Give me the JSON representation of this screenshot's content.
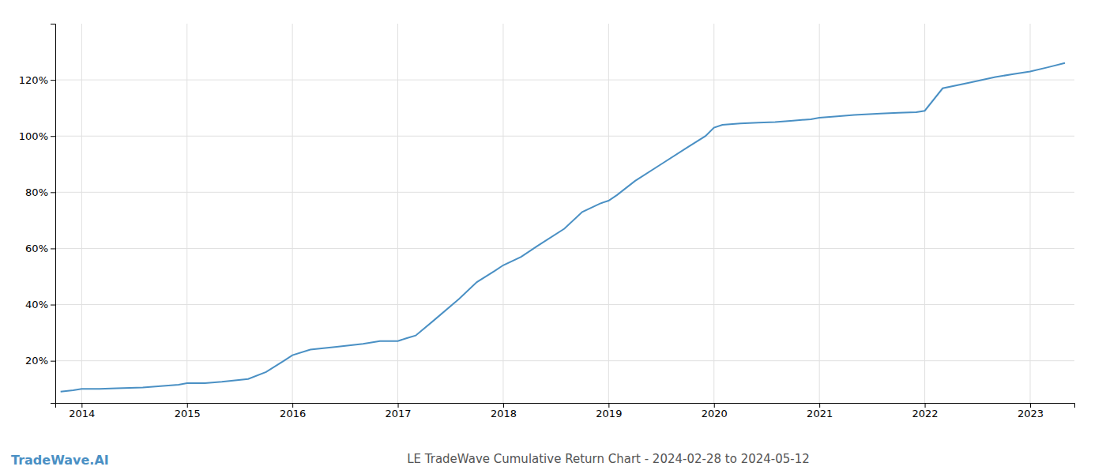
{
  "chart_data": {
    "type": "line",
    "title": "LE TradeWave Cumulative Return Chart - 2024-02-28 to 2024-05-12",
    "annotations": [
      "TradeWave.AI"
    ],
    "color": "#4a90c4",
    "grid": true,
    "x": [
      2013.8,
      2013.92,
      2014.0,
      2014.17,
      2014.33,
      2014.58,
      2014.75,
      2014.92,
      2015.0,
      2015.17,
      2015.33,
      2015.58,
      2015.75,
      2015.92,
      2016.0,
      2016.17,
      2016.42,
      2016.67,
      2016.83,
      2017.0,
      2017.08,
      2017.17,
      2017.33,
      2017.58,
      2017.75,
      2017.92,
      2018.0,
      2018.17,
      2018.33,
      2018.58,
      2018.75,
      2018.92,
      2019.0,
      2019.08,
      2019.25,
      2019.5,
      2019.75,
      2019.92,
      2020.0,
      2020.08,
      2020.25,
      2020.42,
      2020.58,
      2020.75,
      2020.92,
      2021.0,
      2021.17,
      2021.33,
      2021.58,
      2021.75,
      2021.92,
      2022.0,
      2022.17,
      2022.42,
      2022.67,
      2022.83,
      2023.0,
      2023.17,
      2023.33
    ],
    "values": [
      9,
      9.5,
      10,
      10,
      10.2,
      10.5,
      11,
      11.5,
      12,
      12,
      12.5,
      13.5,
      16,
      20,
      22,
      24,
      25,
      26,
      27,
      27,
      28,
      29,
      34,
      42,
      48,
      52,
      54,
      57,
      61,
      67,
      73,
      76,
      77,
      79,
      84,
      90,
      96,
      100,
      103,
      104,
      104.5,
      104.8,
      105,
      105.5,
      106,
      106.5,
      107,
      107.5,
      108,
      108.3,
      108.5,
      109,
      117,
      119,
      121,
      122,
      123,
      124.5,
      126
    ],
    "xlim": [
      2013.75,
      2023.42
    ],
    "ylim": [
      5,
      140
    ],
    "xticks": [
      2014,
      2015,
      2016,
      2017,
      2018,
      2019,
      2020,
      2021,
      2022,
      2023
    ],
    "yticks": [
      {
        "value": 20,
        "label": "20%"
      },
      {
        "value": 40,
        "label": "40%"
      },
      {
        "value": 60,
        "label": "60%"
      },
      {
        "value": 80,
        "label": "80%"
      },
      {
        "value": 100,
        "label": "100%"
      },
      {
        "value": 120,
        "label": "120%"
      }
    ]
  }
}
